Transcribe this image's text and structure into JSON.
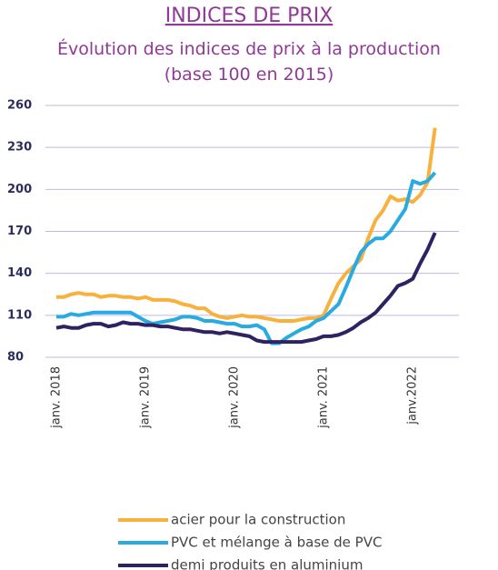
{
  "chart_data": {
    "type": "line",
    "title": "INDICES DE PRIX",
    "subtitle": [
      "Évolution des indices de prix à la production",
      "(base 100 en 2015)"
    ],
    "categories": [
      "janv. 2018",
      null,
      null,
      null,
      null,
      null,
      null,
      null,
      null,
      null,
      null,
      null,
      "janv. 2019",
      null,
      null,
      null,
      null,
      null,
      null,
      null,
      null,
      null,
      null,
      null,
      "janv. 2020",
      null,
      null,
      null,
      null,
      null,
      null,
      null,
      null,
      null,
      null,
      null,
      "janv. 2021",
      null,
      null,
      null,
      null,
      null,
      null,
      null,
      null,
      null,
      null,
      null,
      "janv.2022",
      null,
      null,
      null
    ],
    "series": [
      {
        "name": "acier pour la construction",
        "color": "#f8b13c",
        "values": [
          123,
          123,
          125,
          126,
          125,
          125,
          123,
          124,
          124,
          123,
          123,
          122,
          123,
          121,
          121,
          121,
          120,
          118,
          117,
          115,
          115,
          111,
          109,
          108,
          109,
          110,
          109,
          109,
          108,
          107,
          106,
          106,
          106,
          107,
          108,
          108,
          110,
          122,
          133,
          140,
          145,
          150,
          165,
          178,
          185,
          195,
          192,
          193,
          191,
          196,
          205,
          244
        ]
      },
      {
        "name": "PVC et mélange à base de PVC",
        "color": "#29abe2",
        "values": [
          109,
          109,
          111,
          110,
          111,
          112,
          112,
          112,
          112,
          112,
          112,
          109,
          106,
          104,
          105,
          106,
          107,
          109,
          109,
          108,
          106,
          106,
          105,
          104,
          104,
          102,
          102,
          103,
          100,
          90,
          90,
          94,
          97,
          100,
          102,
          106,
          108,
          113,
          118,
          130,
          143,
          155,
          161,
          165,
          165,
          170,
          178,
          186,
          206,
          204,
          206,
          212
        ]
      },
      {
        "name": "demi produits en aluminium",
        "color": "#2e2260",
        "values": [
          101,
          102,
          101,
          101,
          103,
          104,
          104,
          102,
          103,
          105,
          104,
          104,
          103,
          103,
          102,
          102,
          101,
          100,
          100,
          99,
          98,
          98,
          97,
          98,
          97,
          96,
          95,
          92,
          91,
          91,
          91,
          91,
          91,
          91,
          92,
          93,
          95,
          95,
          96,
          98,
          101,
          105,
          108,
          112,
          118,
          124,
          131,
          133,
          136,
          147,
          157,
          169
        ]
      }
    ],
    "ylim": [
      80,
      260
    ],
    "yticks": [
      80,
      110,
      140,
      170,
      200,
      230,
      260
    ],
    "grid": true
  }
}
